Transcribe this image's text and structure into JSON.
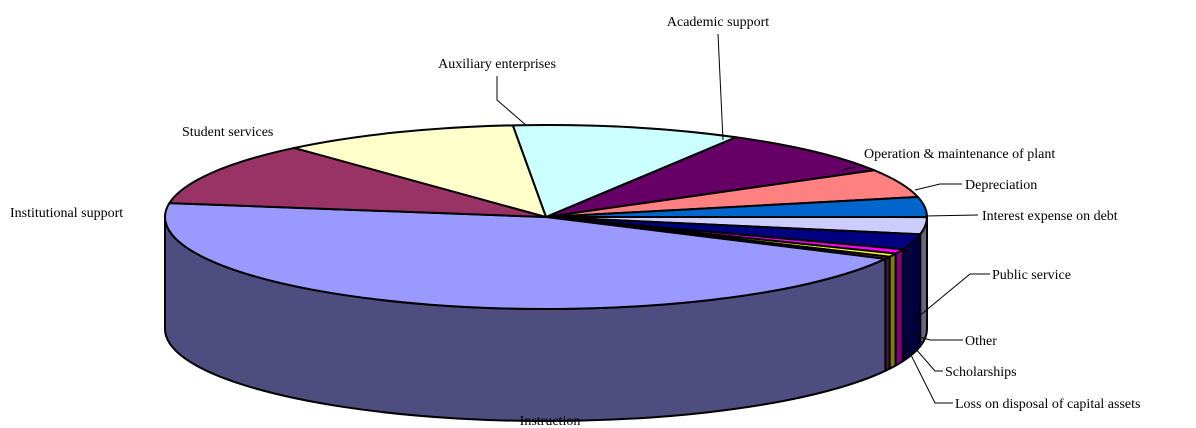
{
  "chart_data": {
    "type": "pie",
    "title": "",
    "style": "3d-pie",
    "start_angle_deg": -95,
    "categories": [
      "Auxiliary enterprises",
      "Academic support",
      "Operation & maintenance of plant",
      "Depreciation",
      "Interest expense on debt",
      "Public service",
      "Other",
      "Scholarships",
      "Loss on disposal of capital assets",
      "Instruction",
      "Institutional support",
      "Student services"
    ],
    "values": [
      9.7,
      8.2,
      5.0,
      3.5,
      3.0,
      2.7,
      0.8,
      0.6,
      0.4,
      44.9,
      11.1,
      10.1
    ],
    "colors": [
      "#ccffff",
      "#660066",
      "#ff8080",
      "#0066cc",
      "#ccccff",
      "#000080",
      "#ff00ff",
      "#ffff00",
      "#993366",
      "#9999ff",
      "#993366",
      "#ffffcc"
    ],
    "label_placement": [
      "top",
      "top",
      "right",
      "right",
      "right",
      "right-leader",
      "right-leader",
      "right-leader",
      "right-leader",
      "bottom",
      "left",
      "left"
    ]
  }
}
